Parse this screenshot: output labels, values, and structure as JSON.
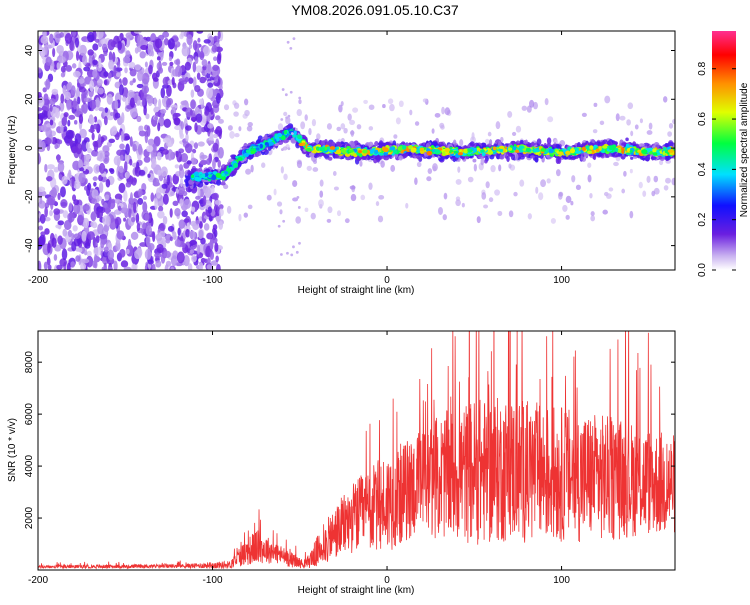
{
  "chart_data": [
    {
      "id": "spectrogram",
      "type": "heatmap",
      "title": "YM08.2026.091.05.10.C37",
      "xlabel": "Height of straight line (km)",
      "ylabel": "Frequency (Hz)",
      "xlim": [
        -200,
        165
      ],
      "ylim": [
        -50,
        48
      ],
      "xticks": [
        -200,
        -100,
        0,
        100
      ],
      "yticks": [
        -40,
        -20,
        0,
        20,
        40
      ],
      "colorbar": {
        "label": "Normalized spectral amplitude",
        "range": [
          0,
          0.95
        ],
        "ticks": [
          0.0,
          0.2,
          0.4,
          0.6,
          0.8
        ],
        "tick_labels": [
          "0.0",
          "0.2",
          "0.4",
          "0.6",
          "0.8"
        ]
      },
      "description_points": [
        {
          "x": -200,
          "y_center": 0,
          "spread": 48,
          "amp": 0.08
        },
        {
          "x": -110,
          "y_center": -12,
          "spread": 4,
          "amp": 0.3
        },
        {
          "x": -95,
          "y_center": -12,
          "spread": 4,
          "amp": 0.35
        },
        {
          "x": -80,
          "y_center": -2,
          "spread": 4,
          "amp": 0.3
        },
        {
          "x": -60,
          "y_center": 8,
          "spread": 6,
          "amp": 0.3
        },
        {
          "x": -40,
          "y_center": 0,
          "spread": 3,
          "amp": 0.4
        },
        {
          "x": 0,
          "y_center": -1,
          "spread": 4,
          "amp": 0.5
        },
        {
          "x": 100,
          "y_center": -1,
          "spread": 4,
          "amp": 0.5
        },
        {
          "x": 165,
          "y_center": -1,
          "spread": 4,
          "amp": 0.5
        }
      ]
    },
    {
      "id": "snr",
      "type": "line",
      "xlabel": "Height of straight line (km)",
      "ylabel": "SNR (10 * v/v)",
      "xlim": [
        -200,
        165
      ],
      "ylim": [
        0,
        9200
      ],
      "xticks": [
        -200,
        -100,
        0,
        100
      ],
      "yticks": [
        2000,
        4000,
        6000,
        8000
      ],
      "series": [
        {
          "name": "SNR",
          "color": "#ee3333",
          "envelope": {
            "x": [
              -200,
              -120,
              -90,
              -85,
              -75,
              -65,
              -55,
              -47,
              -40,
              -30,
              -20,
              -10,
              0,
              10,
              20,
              30,
              40,
              50,
              60,
              70,
              80,
              90,
              100,
              110,
              120,
              130,
              140,
              150,
              160,
              165
            ],
            "base": [
              120,
              150,
              200,
              500,
              900,
              700,
              400,
              200,
              700,
              1400,
              2000,
              2300,
              2600,
              3000,
              3400,
              3600,
              3700,
              3800,
              3800,
              3900,
              3800,
              3700,
              3700,
              3600,
              3600,
              3500,
              3500,
              3400,
              3300,
              3300
            ],
            "amp": [
              80,
              100,
              200,
              500,
              900,
              600,
              400,
              200,
              800,
              1400,
              1800,
              2200,
              2600,
              2600,
              2800,
              3200,
              3500,
              3800,
              3800,
              3800,
              3700,
              3600,
              3500,
              3400,
              3300,
              3200,
              3000,
              2800,
              2700,
              2600
            ]
          }
        }
      ]
    }
  ]
}
